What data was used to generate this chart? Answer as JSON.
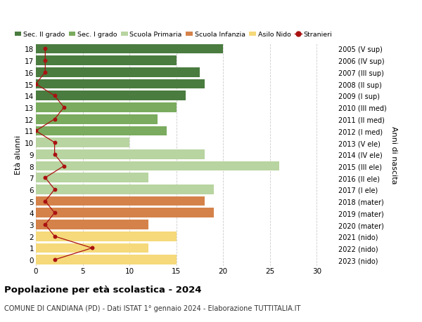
{
  "ages": [
    18,
    17,
    16,
    15,
    14,
    13,
    12,
    11,
    10,
    9,
    8,
    7,
    6,
    5,
    4,
    3,
    2,
    1,
    0
  ],
  "right_labels": [
    "2005 (V sup)",
    "2006 (IV sup)",
    "2007 (III sup)",
    "2008 (II sup)",
    "2009 (I sup)",
    "2010 (III med)",
    "2011 (II med)",
    "2012 (I med)",
    "2013 (V ele)",
    "2014 (IV ele)",
    "2015 (III ele)",
    "2016 (II ele)",
    "2017 (I ele)",
    "2018 (mater)",
    "2019 (mater)",
    "2020 (mater)",
    "2021 (nido)",
    "2022 (nido)",
    "2023 (nido)"
  ],
  "bar_values": [
    20,
    15,
    17.5,
    18,
    16,
    15,
    13,
    14,
    10,
    18,
    26,
    12,
    19,
    18,
    19,
    12,
    15,
    12,
    15
  ],
  "bar_colors": [
    "#4a7c3f",
    "#4a7c3f",
    "#4a7c3f",
    "#4a7c3f",
    "#4a7c3f",
    "#7aab5e",
    "#7aab5e",
    "#7aab5e",
    "#b8d4a0",
    "#b8d4a0",
    "#b8d4a0",
    "#b8d4a0",
    "#b8d4a0",
    "#d4824a",
    "#d4824a",
    "#d4824a",
    "#f5d97a",
    "#f5d97a",
    "#f5d97a"
  ],
  "stranieri_values": [
    1,
    1,
    1,
    0,
    2,
    3,
    2,
    0,
    2,
    2,
    3,
    1,
    2,
    1,
    2,
    1,
    2,
    6,
    2
  ],
  "legend_labels": [
    "Sec. II grado",
    "Sec. I grado",
    "Scuola Primaria",
    "Scuola Infanzia",
    "Asilo Nido",
    "Stranieri"
  ],
  "legend_colors": [
    "#4a7c3f",
    "#7aab5e",
    "#b8d4a0",
    "#d4824a",
    "#f5d97a",
    "#aa1111"
  ],
  "title_bold": "Popolazione per età scolastica - 2024",
  "subtitle": "COMUNE DI CANDIANA (PD) - Dati ISTAT 1° gennaio 2024 - Elaborazione TUTTITALIA.IT",
  "ylabel_left": "Età alunni",
  "ylabel_right": "Anni di nascita",
  "xlim": [
    0,
    32
  ],
  "xticks": [
    0,
    5,
    10,
    15,
    20,
    25,
    30
  ],
  "background_color": "#ffffff",
  "grid_color": "#cccccc"
}
